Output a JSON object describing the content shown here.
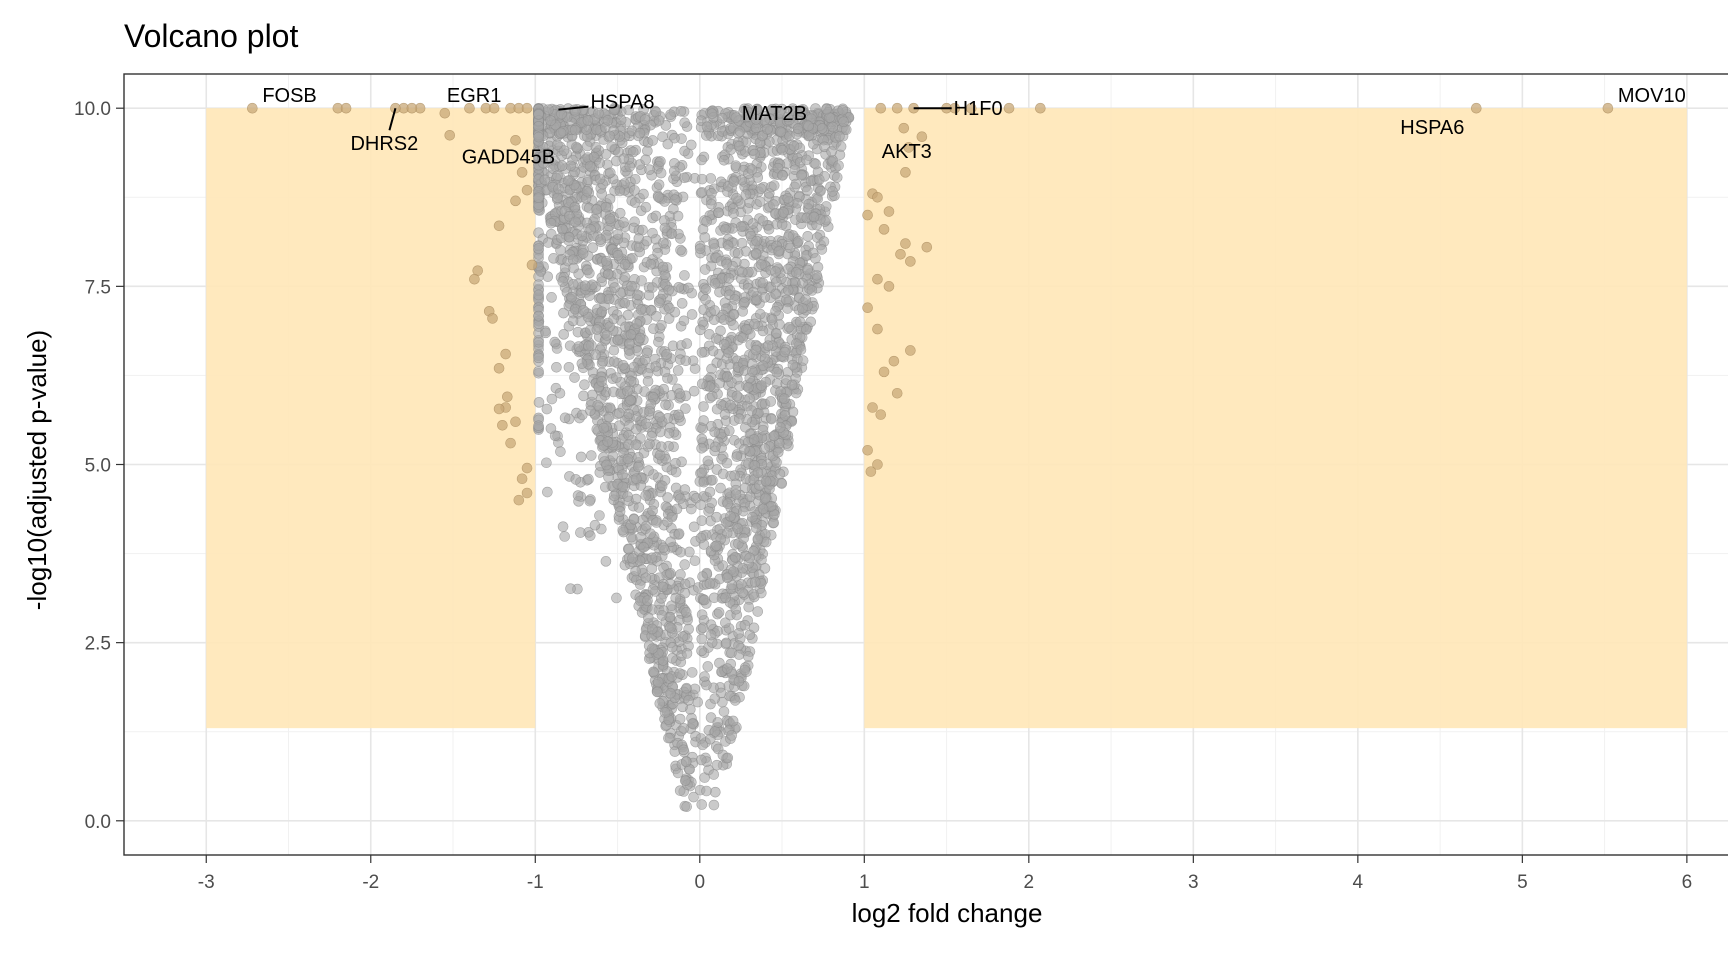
{
  "chart_data": {
    "type": "scatter",
    "title": "Volcano plot",
    "xlabel": "log2 fold change",
    "ylabel": "-log10(adjusted p-value)",
    "xlim": [
      -3.5,
      6.25
    ],
    "ylim": [
      -0.48,
      10.48
    ],
    "x_ticks": [
      -3,
      -2,
      -1,
      0,
      1,
      2,
      3,
      4,
      5,
      6
    ],
    "y_ticks": [
      0,
      2.5,
      5,
      7.5,
      10
    ],
    "x_tick_labels": [
      "-3",
      "-2",
      "-1",
      "0",
      "1",
      "2",
      "3",
      "4",
      "5",
      "6"
    ],
    "y_tick_labels": [
      "0.0",
      "2.5",
      "5.0",
      "7.5",
      "10.0"
    ],
    "grid": true,
    "highlight_regions": [
      {
        "x": [
          -3,
          -1
        ],
        "y": [
          1.3,
          10
        ],
        "color": "#ffe7b8"
      },
      {
        "x": [
          1,
          6
        ],
        "y": [
          1.3,
          10
        ],
        "color": "#ffe7b8"
      }
    ],
    "point_color": "#a6a6a6",
    "significant_point_color": "#c8a878",
    "labeled_genes": [
      {
        "label": "FOSB",
        "x": -2.72,
        "y": 10.0
      },
      {
        "label": "EGR1",
        "x": -1.75,
        "y": 10.0
      },
      {
        "label": "DHRS2",
        "x": -1.85,
        "y": 10.0
      },
      {
        "label": "GADD45B",
        "x": -1.52,
        "y": 9.62
      },
      {
        "label": "HSPA8",
        "x": -0.92,
        "y": 9.98
      },
      {
        "label": "MAT2B",
        "x": 0.62,
        "y": 9.95
      },
      {
        "label": "H1F0",
        "x": 1.3,
        "y": 10.0
      },
      {
        "label": "AKT3",
        "x": 1.24,
        "y": 9.72
      },
      {
        "label": "HSPA6",
        "x": 4.72,
        "y": 10.0
      },
      {
        "label": "MOV10",
        "x": 5.52,
        "y": 10.0
      }
    ],
    "extra_points": [
      {
        "x": -2.2,
        "y": 10.0
      },
      {
        "x": -2.15,
        "y": 10.0
      },
      {
        "x": -1.8,
        "y": 10.0
      },
      {
        "x": -1.7,
        "y": 10.0
      },
      {
        "x": -1.55,
        "y": 9.93
      },
      {
        "x": -1.4,
        "y": 10.0
      },
      {
        "x": -1.3,
        "y": 10.0
      },
      {
        "x": -1.25,
        "y": 10.0
      },
      {
        "x": -1.15,
        "y": 10.0
      },
      {
        "x": -1.1,
        "y": 10.0
      },
      {
        "x": -1.05,
        "y": 10.0
      },
      {
        "x": -1.12,
        "y": 9.55
      },
      {
        "x": -1.08,
        "y": 9.1
      },
      {
        "x": -1.05,
        "y": 8.85
      },
      {
        "x": -1.12,
        "y": 8.7
      },
      {
        "x": -1.22,
        "y": 8.35
      },
      {
        "x": -1.02,
        "y": 7.8
      },
      {
        "x": -1.35,
        "y": 7.72
      },
      {
        "x": -1.37,
        "y": 7.6
      },
      {
        "x": -1.28,
        "y": 7.15
      },
      {
        "x": -1.26,
        "y": 7.05
      },
      {
        "x": -1.18,
        "y": 6.55
      },
      {
        "x": -1.22,
        "y": 6.35
      },
      {
        "x": -1.17,
        "y": 5.95
      },
      {
        "x": -1.18,
        "y": 5.8
      },
      {
        "x": -1.22,
        "y": 5.78
      },
      {
        "x": -1.12,
        "y": 5.6
      },
      {
        "x": -1.2,
        "y": 5.55
      },
      {
        "x": -1.15,
        "y": 5.3
      },
      {
        "x": -1.05,
        "y": 4.95
      },
      {
        "x": -1.08,
        "y": 4.8
      },
      {
        "x": -1.1,
        "y": 4.5
      },
      {
        "x": -1.05,
        "y": 4.6
      },
      {
        "x": 1.1,
        "y": 10.0
      },
      {
        "x": 1.2,
        "y": 10.0
      },
      {
        "x": 1.5,
        "y": 10.0
      },
      {
        "x": 1.55,
        "y": 10.0
      },
      {
        "x": 1.65,
        "y": 10.0
      },
      {
        "x": 1.88,
        "y": 10.0
      },
      {
        "x": 2.07,
        "y": 10.0
      },
      {
        "x": 1.35,
        "y": 9.6
      },
      {
        "x": 1.27,
        "y": 9.45
      },
      {
        "x": 1.25,
        "y": 9.1
      },
      {
        "x": 1.05,
        "y": 8.8
      },
      {
        "x": 1.08,
        "y": 8.75
      },
      {
        "x": 1.15,
        "y": 8.55
      },
      {
        "x": 1.02,
        "y": 8.5
      },
      {
        "x": 1.12,
        "y": 8.3
      },
      {
        "x": 1.25,
        "y": 8.1
      },
      {
        "x": 1.38,
        "y": 8.05
      },
      {
        "x": 1.22,
        "y": 7.95
      },
      {
        "x": 1.28,
        "y": 7.85
      },
      {
        "x": 1.08,
        "y": 7.6
      },
      {
        "x": 1.15,
        "y": 7.5
      },
      {
        "x": 1.02,
        "y": 7.2
      },
      {
        "x": 1.08,
        "y": 6.9
      },
      {
        "x": 1.28,
        "y": 6.6
      },
      {
        "x": 1.18,
        "y": 6.45
      },
      {
        "x": 1.12,
        "y": 6.3
      },
      {
        "x": 1.2,
        "y": 6.0
      },
      {
        "x": 1.05,
        "y": 5.8
      },
      {
        "x": 1.1,
        "y": 5.7
      },
      {
        "x": 1.02,
        "y": 5.2
      },
      {
        "x": 1.08,
        "y": 5.0
      },
      {
        "x": 1.04,
        "y": 4.9
      }
    ]
  }
}
